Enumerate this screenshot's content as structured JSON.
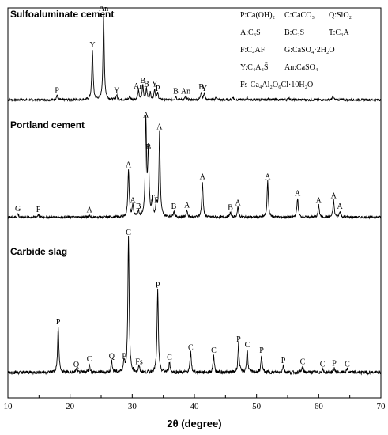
{
  "chart_data": {
    "type": "line",
    "xlabel": "2θ (degree)",
    "xlim": [
      10,
      70
    ],
    "x_ticks": [
      "10",
      "20",
      "30",
      "40",
      "50",
      "60",
      "70"
    ],
    "y_ticks": "none",
    "grid": false,
    "legend": {
      "placement": "top-right",
      "entries": [
        [
          "P:Ca(OH)₂",
          "C:CaCO₃",
          "Q:SiO₂"
        ],
        [
          "A:C₃S",
          "B:C₂S",
          "T:C₃A"
        ],
        [
          "F:C₄AF",
          "G:CaSO₄·2H₂O"
        ],
        [
          "Y:C₄A₃S̄",
          "An:CaSO₄"
        ],
        [
          "Fs-Ca₄Al₂O₆Cl·10H₂O"
        ]
      ]
    },
    "series": [
      {
        "name": "Sulfoaluminate cement",
        "baseline": 0.05,
        "noise": 0.012,
        "peaks": [
          {
            "x": 17.9,
            "h": 0.05,
            "label": "P"
          },
          {
            "x": 23.6,
            "h": 0.55,
            "label": "Y"
          },
          {
            "x": 25.4,
            "h": 0.95,
            "label": "An"
          },
          {
            "x": 27.5,
            "h": 0.05,
            "label": "Y"
          },
          {
            "x": 29.6,
            "h": 0.04
          },
          {
            "x": 31.0,
            "h": 0.1,
            "label": "An"
          },
          {
            "x": 31.7,
            "h": 0.16,
            "label": "B"
          },
          {
            "x": 32.3,
            "h": 0.12,
            "label": "B"
          },
          {
            "x": 32.9,
            "h": 0.08
          },
          {
            "x": 33.6,
            "h": 0.12,
            "label": "Y"
          },
          {
            "x": 34.1,
            "h": 0.07,
            "label": "P"
          },
          {
            "x": 37.0,
            "h": 0.04,
            "label": "B"
          },
          {
            "x": 38.6,
            "h": 0.04,
            "label": "An"
          },
          {
            "x": 41.1,
            "h": 0.09,
            "label": "B"
          },
          {
            "x": 41.6,
            "h": 0.07,
            "label": "Y"
          },
          {
            "x": 43.5,
            "h": 0.03
          },
          {
            "x": 46.2,
            "h": 0.03
          },
          {
            "x": 48.5,
            "h": 0.025
          },
          {
            "x": 52.0,
            "h": 0.02
          },
          {
            "x": 55.2,
            "h": 0.025
          },
          {
            "x": 62.3,
            "h": 0.04
          }
        ]
      },
      {
        "name": "Portland cement",
        "baseline": 0.05,
        "noise": 0.01,
        "peaks": [
          {
            "x": 11.6,
            "h": 0.03,
            "label": "G"
          },
          {
            "x": 14.9,
            "h": 0.025,
            "label": "F"
          },
          {
            "x": 23.1,
            "h": 0.02,
            "label": "A"
          },
          {
            "x": 29.4,
            "h": 0.4,
            "label": "A"
          },
          {
            "x": 30.1,
            "h": 0.1,
            "label": "A"
          },
          {
            "x": 31.0,
            "h": 0.05,
            "label": "B"
          },
          {
            "x": 32.2,
            "h": 0.82,
            "label": "A"
          },
          {
            "x": 32.6,
            "h": 0.55,
            "label": "B"
          },
          {
            "x": 33.2,
            "h": 0.12,
            "label": "T"
          },
          {
            "x": 33.9,
            "h": 0.1,
            "label": "F"
          },
          {
            "x": 34.4,
            "h": 0.72,
            "label": "A"
          },
          {
            "x": 36.7,
            "h": 0.05,
            "label": "B"
          },
          {
            "x": 38.8,
            "h": 0.06,
            "label": "A"
          },
          {
            "x": 41.3,
            "h": 0.3,
            "label": "A"
          },
          {
            "x": 45.8,
            "h": 0.04,
            "label": "B"
          },
          {
            "x": 47.0,
            "h": 0.08,
            "label": "A"
          },
          {
            "x": 51.8,
            "h": 0.3,
            "label": "A"
          },
          {
            "x": 56.6,
            "h": 0.16,
            "label": "A"
          },
          {
            "x": 60.0,
            "h": 0.1,
            "label": "A"
          },
          {
            "x": 62.4,
            "h": 0.14,
            "label": "A"
          },
          {
            "x": 63.4,
            "h": 0.05,
            "label": "A"
          }
        ]
      },
      {
        "name": "Carbide slag",
        "baseline": 0.04,
        "noise": 0.012,
        "peaks": [
          {
            "x": 18.1,
            "h": 0.32,
            "label": "P"
          },
          {
            "x": 21.0,
            "h": 0.02,
            "label": "Q"
          },
          {
            "x": 23.1,
            "h": 0.06,
            "label": "C"
          },
          {
            "x": 26.7,
            "h": 0.08,
            "label": "Q"
          },
          {
            "x": 28.7,
            "h": 0.08,
            "label": "P"
          },
          {
            "x": 29.4,
            "h": 0.95,
            "label": "C"
          },
          {
            "x": 31.1,
            "h": 0.04,
            "label": "Fs"
          },
          {
            "x": 34.1,
            "h": 0.58,
            "label": "P"
          },
          {
            "x": 36.0,
            "h": 0.07,
            "label": "C"
          },
          {
            "x": 39.4,
            "h": 0.14,
            "label": "C"
          },
          {
            "x": 43.1,
            "h": 0.12,
            "label": "C"
          },
          {
            "x": 47.1,
            "h": 0.2,
            "label": "P"
          },
          {
            "x": 48.5,
            "h": 0.16,
            "label": "C"
          },
          {
            "x": 50.8,
            "h": 0.12,
            "label": "P"
          },
          {
            "x": 54.3,
            "h": 0.05,
            "label": "P"
          },
          {
            "x": 57.4,
            "h": 0.04,
            "label": "C"
          },
          {
            "x": 60.6,
            "h": 0.025,
            "label": "C"
          },
          {
            "x": 62.5,
            "h": 0.03,
            "label": "P"
          },
          {
            "x": 64.6,
            "h": 0.025,
            "label": "C"
          }
        ]
      }
    ]
  }
}
